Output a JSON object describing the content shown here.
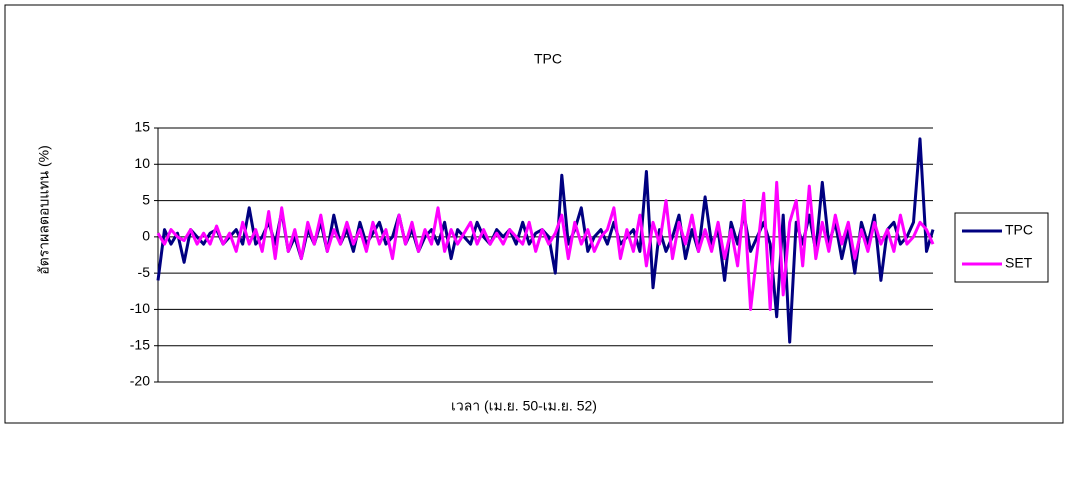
{
  "chart_data": {
    "type": "line",
    "title": "TPC",
    "x_label": "เวลา (เม.ย. 50-เม.ย. 52)",
    "y_label": "อัตราผลตอบแทน (%)",
    "ylim": [
      -20,
      15
    ],
    "yticks": [
      -20,
      -15,
      -10,
      -5,
      0,
      5,
      10,
      15
    ],
    "grid": true,
    "legend": "right",
    "series": [
      {
        "name": "TPC",
        "color": "#000080",
        "values": [
          -6,
          1,
          -1,
          0.5,
          -3.5,
          1,
          0,
          -1,
          0.5,
          1,
          -1,
          0,
          1,
          -1,
          4,
          -1,
          0,
          2,
          -1,
          3.5,
          -2,
          0,
          -3,
          1,
          -1,
          2,
          -2,
          3,
          -1,
          1,
          -2,
          2,
          -1,
          0.5,
          2,
          -1,
          0,
          3,
          -1,
          1,
          -2,
          0,
          1,
          -1,
          2,
          -3,
          1,
          0,
          -1,
          2,
          0,
          -1,
          1,
          0,
          1,
          -1,
          2,
          -1,
          0.5,
          1,
          0,
          -5,
          8.5,
          -1,
          1,
          4,
          -2,
          0,
          1,
          -1,
          2,
          -1,
          0,
          1,
          -2,
          9,
          -7,
          1,
          -2,
          0,
          3,
          -3,
          1,
          -2,
          5.5,
          -1,
          1,
          -6,
          2,
          -1,
          3,
          -2,
          0,
          2,
          -1,
          -11,
          3,
          -14.5,
          2,
          -1,
          3,
          -2,
          7.5,
          -1,
          2,
          -3,
          1,
          -5,
          2,
          -1,
          3,
          -6,
          1,
          2,
          -1,
          0,
          2,
          13.5,
          -2,
          1
        ]
      },
      {
        "name": "SET",
        "color": "#ff00ff",
        "values": [
          0.5,
          -1,
          1,
          0,
          -0.5,
          1,
          -1,
          0.5,
          -1,
          1.5,
          -1,
          0.5,
          -2,
          2,
          -1,
          1,
          -2,
          3.5,
          -3,
          4,
          -2,
          1,
          -3,
          2,
          -1,
          3,
          -2,
          1,
          -1,
          2,
          -1,
          1,
          -2,
          2,
          -1,
          1,
          -3,
          3,
          -1,
          2,
          -2,
          1,
          -1,
          4,
          -2,
          1,
          -1,
          0.5,
          2,
          -1,
          1,
          -1,
          0.5,
          -1,
          1,
          0,
          -1,
          2,
          -2,
          1,
          -1,
          0.5,
          3,
          -3,
          2,
          -1,
          1,
          -2,
          0,
          1,
          4,
          -3,
          1,
          -2,
          3,
          -4,
          2,
          -1,
          5,
          -3,
          2,
          -1,
          3,
          -2,
          1,
          -2,
          2,
          -3,
          1,
          -4,
          5,
          -10,
          -2,
          6,
          -10,
          7.5,
          -8,
          2,
          5,
          -4,
          7,
          -3,
          2,
          -2,
          3,
          -1,
          2,
          -3,
          1,
          -2,
          2,
          -1,
          1,
          -2,
          3,
          -1,
          0,
          2,
          1,
          -1
        ]
      }
    ]
  }
}
